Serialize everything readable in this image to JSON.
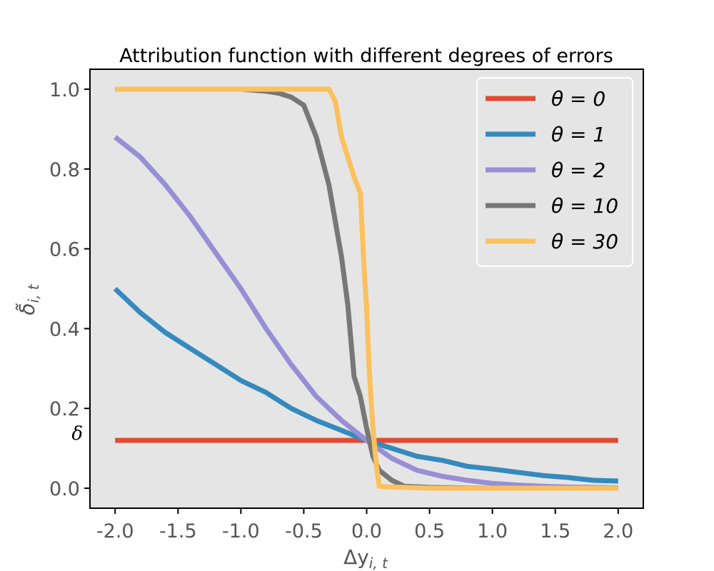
{
  "chart_data": {
    "type": "line",
    "title": "Attribution function with different degrees of errors",
    "xlabel": "Δy",
    "xlabel_sub": "i, t",
    "ylabel": "δ̃",
    "ylabel_sub": "i, t",
    "xlim": [
      -2.2,
      2.2
    ],
    "ylim": [
      -0.05,
      1.05
    ],
    "x_ticks": [
      -2.0,
      -1.5,
      -1.0,
      -0.5,
      0.0,
      0.5,
      1.0,
      1.5,
      2.0
    ],
    "x_tick_labels": [
      "-2.0",
      "-1.5",
      "-1.0",
      "-0.5",
      "0.0",
      "0.5",
      "1.0",
      "1.5",
      "2.0"
    ],
    "y_ticks": [
      0.0,
      0.2,
      0.4,
      0.6,
      0.8,
      1.0
    ],
    "y_tick_labels": [
      "0.0",
      "0.2",
      "0.4",
      "0.6",
      "0.8",
      "1.0"
    ],
    "annotation": {
      "text": "δ",
      "y": 0.12
    },
    "legend_position": "top-right",
    "grid": false,
    "series": [
      {
        "name": "θ = 0",
        "color": "#E24A33",
        "x": [
          -2.0,
          -1.0,
          0.0,
          1.0,
          2.0
        ],
        "y": [
          0.12,
          0.12,
          0.12,
          0.12,
          0.12
        ]
      },
      {
        "name": "θ = 1",
        "color": "#348ABD",
        "x": [
          -2.0,
          -1.8,
          -1.6,
          -1.4,
          -1.2,
          -1.0,
          -0.8,
          -0.6,
          -0.4,
          -0.2,
          0.0,
          0.2,
          0.4,
          0.6,
          0.8,
          1.0,
          1.2,
          1.4,
          1.6,
          1.8,
          2.0
        ],
        "y": [
          0.5,
          0.44,
          0.39,
          0.35,
          0.31,
          0.27,
          0.24,
          0.2,
          0.17,
          0.145,
          0.12,
          0.1,
          0.08,
          0.07,
          0.055,
          0.048,
          0.04,
          0.032,
          0.027,
          0.02,
          0.018
        ]
      },
      {
        "name": "θ = 2",
        "color": "#988ED5",
        "x": [
          -2.0,
          -1.8,
          -1.6,
          -1.4,
          -1.2,
          -1.0,
          -0.8,
          -0.6,
          -0.4,
          -0.2,
          0.0,
          0.2,
          0.4,
          0.6,
          0.8,
          1.0,
          1.2,
          1.4,
          1.6,
          1.8,
          2.0
        ],
        "y": [
          0.88,
          0.83,
          0.76,
          0.68,
          0.59,
          0.5,
          0.4,
          0.31,
          0.23,
          0.17,
          0.12,
          0.075,
          0.045,
          0.03,
          0.02,
          0.012,
          0.008,
          0.005,
          0.003,
          0.002,
          0.001
        ]
      },
      {
        "name": "θ = 10",
        "color": "#777777",
        "x": [
          -2.0,
          -1.5,
          -1.0,
          -0.8,
          -0.7,
          -0.6,
          -0.5,
          -0.45,
          -0.4,
          -0.3,
          -0.2,
          -0.15,
          -0.1,
          -0.05,
          0.0,
          0.05,
          0.1,
          0.2,
          0.3,
          0.5,
          1.0,
          1.5,
          2.0
        ],
        "y": [
          1.0,
          1.0,
          1.0,
          0.995,
          0.99,
          0.98,
          0.96,
          0.92,
          0.88,
          0.76,
          0.58,
          0.46,
          0.28,
          0.23,
          0.15,
          0.08,
          0.045,
          0.02,
          0.005,
          0.002,
          0.0,
          0.0,
          0.0
        ]
      },
      {
        "name": "θ = 30",
        "color": "#FBC15E",
        "x": [
          -2.0,
          -1.5,
          -1.0,
          -0.5,
          -0.3,
          -0.25,
          -0.2,
          -0.1,
          -0.05,
          -0.02,
          0.0,
          0.02,
          0.05,
          0.08,
          0.1,
          0.2,
          0.5,
          1.0,
          1.5,
          2.0
        ],
        "y": [
          1.0,
          1.0,
          1.0,
          1.0,
          1.0,
          0.97,
          0.88,
          0.78,
          0.74,
          0.55,
          0.45,
          0.3,
          0.15,
          0.05,
          0.005,
          0.003,
          0.0,
          0.0,
          0.0,
          0.0
        ]
      }
    ]
  }
}
